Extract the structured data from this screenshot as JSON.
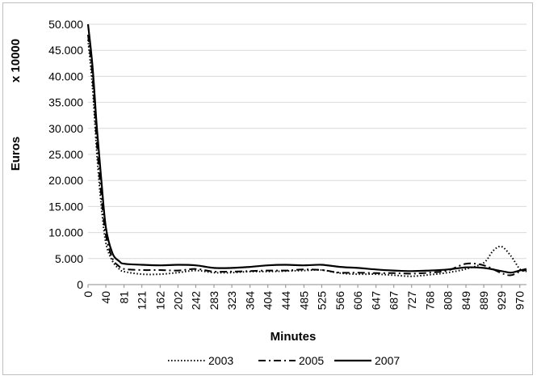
{
  "chart_data": {
    "type": "line",
    "title": "",
    "xlabel": "Minutes",
    "ylabel": "Euros",
    "y_unit_label": "x 10000",
    "ylim": [
      0,
      50000
    ],
    "y_ticks": [
      "0",
      "5.000",
      "10.000",
      "15.000",
      "20.000",
      "25.000",
      "30.000",
      "35.000",
      "40.000",
      "45.000",
      "50.000"
    ],
    "y_tick_values": [
      0,
      5000,
      10000,
      15000,
      20000,
      25000,
      30000,
      35000,
      40000,
      45000,
      50000
    ],
    "x_ticks": [
      "0",
      "40",
      "81",
      "121",
      "162",
      "202",
      "242",
      "283",
      "323",
      "364",
      "404",
      "444",
      "485",
      "525",
      "566",
      "606",
      "647",
      "687",
      "727",
      "768",
      "808",
      "849",
      "889",
      "929",
      "970"
    ],
    "grid": true,
    "legend_position": "bottom",
    "series": [
      {
        "name": "2003",
        "style": "dotted",
        "color": "#000000",
        "points": [
          [
            0,
            47000
          ],
          [
            10,
            38000
          ],
          [
            20,
            25000
          ],
          [
            30,
            15000
          ],
          [
            40,
            8000
          ],
          [
            55,
            4500
          ],
          [
            70,
            3000
          ],
          [
            81,
            2500
          ],
          [
            121,
            2000
          ],
          [
            162,
            2000
          ],
          [
            202,
            2300
          ],
          [
            242,
            2700
          ],
          [
            283,
            2300
          ],
          [
            323,
            2300
          ],
          [
            364,
            2500
          ],
          [
            404,
            2500
          ],
          [
            444,
            2600
          ],
          [
            485,
            2700
          ],
          [
            525,
            2800
          ],
          [
            566,
            2200
          ],
          [
            606,
            2000
          ],
          [
            647,
            2000
          ],
          [
            687,
            1800
          ],
          [
            727,
            1600
          ],
          [
            768,
            1900
          ],
          [
            808,
            2300
          ],
          [
            849,
            3000
          ],
          [
            889,
            4200
          ],
          [
            910,
            6500
          ],
          [
            929,
            7300
          ],
          [
            950,
            5500
          ],
          [
            970,
            3000
          ],
          [
            985,
            2500
          ]
        ]
      },
      {
        "name": "2005",
        "style": "dash-dot",
        "color": "#000000",
        "points": [
          [
            0,
            48000
          ],
          [
            10,
            40000
          ],
          [
            20,
            27000
          ],
          [
            30,
            17000
          ],
          [
            40,
            9500
          ],
          [
            55,
            5000
          ],
          [
            70,
            3500
          ],
          [
            81,
            3000
          ],
          [
            121,
            2800
          ],
          [
            162,
            2800
          ],
          [
            202,
            2700
          ],
          [
            242,
            3000
          ],
          [
            283,
            2500
          ],
          [
            323,
            2500
          ],
          [
            364,
            2600
          ],
          [
            404,
            2700
          ],
          [
            444,
            2700
          ],
          [
            485,
            2900
          ],
          [
            525,
            2800
          ],
          [
            566,
            2300
          ],
          [
            606,
            2300
          ],
          [
            647,
            2200
          ],
          [
            687,
            2200
          ],
          [
            727,
            2100
          ],
          [
            768,
            2300
          ],
          [
            808,
            2700
          ],
          [
            849,
            4000
          ],
          [
            889,
            3700
          ],
          [
            929,
            2200
          ],
          [
            950,
            1800
          ],
          [
            970,
            2500
          ],
          [
            985,
            2800
          ]
        ]
      },
      {
        "name": "2007",
        "style": "solid",
        "color": "#000000",
        "points": [
          [
            0,
            50000
          ],
          [
            10,
            42000
          ],
          [
            20,
            30000
          ],
          [
            30,
            20000
          ],
          [
            40,
            11000
          ],
          [
            55,
            6000
          ],
          [
            70,
            4500
          ],
          [
            81,
            4000
          ],
          [
            121,
            3800
          ],
          [
            162,
            3700
          ],
          [
            202,
            3800
          ],
          [
            242,
            3700
          ],
          [
            283,
            3200
          ],
          [
            323,
            3200
          ],
          [
            364,
            3400
          ],
          [
            404,
            3700
          ],
          [
            444,
            3800
          ],
          [
            485,
            3700
          ],
          [
            525,
            3800
          ],
          [
            566,
            3400
          ],
          [
            606,
            3200
          ],
          [
            647,
            2900
          ],
          [
            687,
            2700
          ],
          [
            727,
            2600
          ],
          [
            768,
            2700
          ],
          [
            808,
            2900
          ],
          [
            849,
            3300
          ],
          [
            889,
            3200
          ],
          [
            929,
            2600
          ],
          [
            950,
            2300
          ],
          [
            970,
            2700
          ],
          [
            985,
            3000
          ]
        ]
      }
    ]
  }
}
